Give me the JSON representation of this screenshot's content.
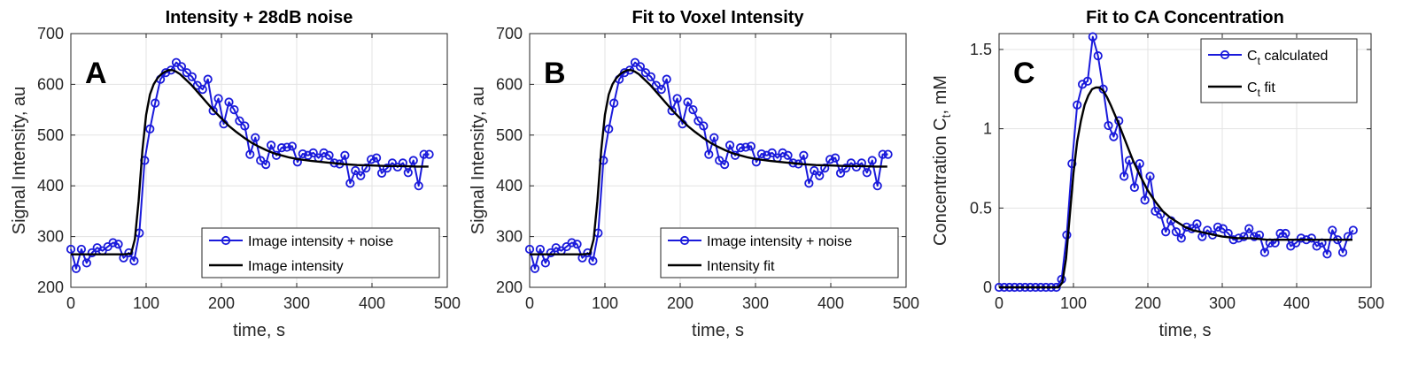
{
  "colors": {
    "series_blue": "#1a1adb",
    "fit_black": "#000000"
  },
  "chart_data": [
    {
      "type": "line",
      "title": "Intensity + 28dB noise",
      "xlabel": "time, s",
      "ylabel": "Signal Intensity, au",
      "xlim": [
        0,
        500
      ],
      "ylim": [
        200,
        700
      ],
      "xticks": [
        0,
        100,
        200,
        300,
        400,
        500
      ],
      "yticks": [
        200,
        300,
        400,
        500,
        600,
        700
      ],
      "grid": true,
      "panel_letter": "A",
      "legend_position": "bottom-right",
      "series": [
        {
          "name": "Image intensity + noise",
          "style": "line-circle-markers",
          "color": "#1a1adb",
          "x": [
            0,
            7,
            14,
            21,
            28,
            35,
            42,
            49,
            56,
            63,
            70,
            77,
            84,
            91,
            98,
            105,
            112,
            119,
            126,
            133,
            140,
            147,
            154,
            161,
            168,
            175,
            182,
            189,
            196,
            203,
            210,
            217,
            224,
            231,
            238,
            245,
            252,
            259,
            266,
            273,
            280,
            287,
            294,
            301,
            308,
            315,
            322,
            329,
            336,
            343,
            350,
            357,
            364,
            371,
            378,
            385,
            392,
            399,
            406,
            413,
            420,
            427,
            434,
            441,
            448,
            455,
            462,
            469,
            476
          ],
          "y": [
            275,
            237,
            275,
            248,
            268,
            278,
            272,
            280,
            288,
            285,
            258,
            268,
            252,
            307,
            450,
            512,
            563,
            610,
            623,
            628,
            643,
            635,
            623,
            615,
            598,
            590,
            610,
            548,
            572,
            522,
            565,
            550,
            528,
            518,
            462,
            495,
            450,
            442,
            480,
            460,
            475,
            476,
            478,
            447,
            463,
            460,
            465,
            455,
            465,
            460,
            445,
            443,
            460,
            405,
            430,
            420,
            435,
            452,
            455,
            425,
            435,
            445,
            437,
            445,
            426,
            450,
            400,
            462,
            462
          ]
        },
        {
          "name": "Image intensity",
          "style": "line",
          "color": "#000000",
          "x": [
            0,
            10,
            20,
            30,
            40,
            50,
            60,
            70,
            80,
            85,
            90,
            95,
            100,
            105,
            110,
            115,
            120,
            125,
            130,
            135,
            140,
            145,
            150,
            160,
            170,
            180,
            190,
            200,
            210,
            220,
            230,
            240,
            250,
            260,
            270,
            280,
            290,
            300,
            320,
            340,
            360,
            380,
            400,
            420,
            440,
            460,
            475
          ],
          "y": [
            265,
            265,
            265,
            265,
            265,
            265,
            265,
            265,
            266,
            295,
            370,
            470,
            540,
            580,
            600,
            612,
            620,
            625,
            628,
            628,
            625,
            620,
            613,
            599,
            582,
            565,
            548,
            533,
            518,
            506,
            495,
            485,
            477,
            470,
            464,
            460,
            456,
            453,
            449,
            446,
            443,
            441,
            440,
            439,
            439,
            438,
            438
          ]
        }
      ]
    },
    {
      "type": "line",
      "title": "Fit to Voxel Intensity",
      "xlabel": "time, s",
      "ylabel": "Signal Intensity, au",
      "xlim": [
        0,
        500
      ],
      "ylim": [
        200,
        700
      ],
      "xticks": [
        0,
        100,
        200,
        300,
        400,
        500
      ],
      "yticks": [
        200,
        300,
        400,
        500,
        600,
        700
      ],
      "grid": true,
      "panel_letter": "B",
      "legend_position": "bottom-right",
      "series": [
        {
          "name": "Image intensity + noise",
          "style": "line-circle-markers",
          "color": "#1a1adb",
          "x": [
            0,
            7,
            14,
            21,
            28,
            35,
            42,
            49,
            56,
            63,
            70,
            77,
            84,
            91,
            98,
            105,
            112,
            119,
            126,
            133,
            140,
            147,
            154,
            161,
            168,
            175,
            182,
            189,
            196,
            203,
            210,
            217,
            224,
            231,
            238,
            245,
            252,
            259,
            266,
            273,
            280,
            287,
            294,
            301,
            308,
            315,
            322,
            329,
            336,
            343,
            350,
            357,
            364,
            371,
            378,
            385,
            392,
            399,
            406,
            413,
            420,
            427,
            434,
            441,
            448,
            455,
            462,
            469,
            476
          ],
          "y": [
            275,
            237,
            275,
            248,
            268,
            278,
            272,
            280,
            288,
            285,
            258,
            268,
            252,
            307,
            450,
            512,
            563,
            610,
            623,
            628,
            643,
            635,
            623,
            615,
            598,
            590,
            610,
            548,
            572,
            522,
            565,
            550,
            528,
            518,
            462,
            495,
            450,
            442,
            480,
            460,
            475,
            476,
            478,
            447,
            463,
            460,
            465,
            455,
            465,
            460,
            445,
            443,
            460,
            405,
            430,
            420,
            435,
            452,
            455,
            425,
            435,
            445,
            437,
            445,
            426,
            450,
            400,
            462,
            462
          ]
        },
        {
          "name": "Intensity fit",
          "style": "line",
          "color": "#000000",
          "x": [
            0,
            10,
            20,
            30,
            40,
            50,
            60,
            70,
            80,
            85,
            90,
            95,
            100,
            105,
            110,
            115,
            120,
            125,
            130,
            135,
            140,
            145,
            150,
            160,
            170,
            180,
            190,
            200,
            210,
            220,
            230,
            240,
            250,
            260,
            270,
            280,
            290,
            300,
            320,
            340,
            360,
            380,
            400,
            420,
            440,
            460,
            475
          ],
          "y": [
            265,
            265,
            265,
            265,
            265,
            265,
            265,
            265,
            266,
            295,
            370,
            470,
            540,
            580,
            600,
            612,
            620,
            625,
            628,
            628,
            625,
            620,
            613,
            599,
            582,
            565,
            548,
            533,
            518,
            506,
            495,
            485,
            477,
            470,
            464,
            460,
            456,
            453,
            449,
            446,
            443,
            441,
            440,
            439,
            439,
            438,
            438
          ]
        }
      ]
    },
    {
      "type": "line",
      "title": "Fit to CA Concentration",
      "xlabel": "time, s",
      "ylabel_main": "Concentration C",
      "ylabel_sub": "t",
      "ylabel_tail": ", mM",
      "xlim": [
        0,
        500
      ],
      "ylim": [
        0,
        1.6
      ],
      "xticks": [
        0,
        100,
        200,
        300,
        400,
        500
      ],
      "yticks": [
        0,
        0.5,
        1,
        1.5
      ],
      "grid": true,
      "panel_letter": "C",
      "legend_position": "top-right",
      "series": [
        {
          "name_main": "C",
          "name_sub": "t",
          "name_tail": " calculated",
          "style": "line-circle-markers",
          "color": "#1a1adb",
          "x": [
            0,
            7,
            14,
            21,
            28,
            35,
            42,
            49,
            56,
            63,
            70,
            77,
            84,
            91,
            98,
            105,
            112,
            119,
            126,
            133,
            140,
            147,
            154,
            161,
            168,
            175,
            182,
            189,
            196,
            203,
            210,
            217,
            224,
            231,
            238,
            245,
            252,
            259,
            266,
            273,
            280,
            287,
            294,
            301,
            308,
            315,
            322,
            329,
            336,
            343,
            350,
            357,
            364,
            371,
            378,
            385,
            392,
            399,
            406,
            413,
            420,
            427,
            434,
            441,
            448,
            455,
            462,
            469,
            476
          ],
          "y": [
            0,
            0,
            0,
            0,
            0,
            0,
            0,
            0,
            0,
            0,
            0,
            0,
            0.05,
            0.33,
            0.78,
            1.15,
            1.28,
            1.3,
            1.58,
            1.46,
            1.25,
            1.02,
            0.95,
            1.05,
            0.7,
            0.8,
            0.63,
            0.78,
            0.55,
            0.7,
            0.48,
            0.46,
            0.35,
            0.42,
            0.35,
            0.31,
            0.38,
            0.37,
            0.4,
            0.32,
            0.36,
            0.33,
            0.38,
            0.37,
            0.34,
            0.3,
            0.31,
            0.32,
            0.37,
            0.32,
            0.33,
            0.22,
            0.28,
            0.28,
            0.34,
            0.34,
            0.26,
            0.28,
            0.31,
            0.3,
            0.31,
            0.26,
            0.28,
            0.21,
            0.36,
            0.3,
            0.22,
            0.32,
            0.36
          ]
        },
        {
          "name_main": "C",
          "name_sub": "t",
          "name_tail": " fit",
          "style": "line",
          "color": "#000000",
          "x": [
            0,
            80,
            85,
            90,
            95,
            100,
            105,
            110,
            115,
            120,
            125,
            130,
            135,
            140,
            145,
            150,
            160,
            170,
            180,
            190,
            200,
            210,
            220,
            230,
            240,
            250,
            260,
            270,
            280,
            290,
            300,
            320,
            340,
            360,
            380,
            400,
            420,
            440,
            460,
            475
          ],
          "y": [
            0,
            0,
            0.03,
            0.18,
            0.45,
            0.72,
            0.92,
            1.05,
            1.15,
            1.21,
            1.25,
            1.26,
            1.26,
            1.24,
            1.2,
            1.15,
            1.04,
            0.92,
            0.8,
            0.7,
            0.61,
            0.54,
            0.48,
            0.44,
            0.41,
            0.38,
            0.36,
            0.35,
            0.34,
            0.33,
            0.32,
            0.31,
            0.31,
            0.3,
            0.3,
            0.3,
            0.3,
            0.3,
            0.3,
            0.3
          ]
        }
      ]
    }
  ]
}
